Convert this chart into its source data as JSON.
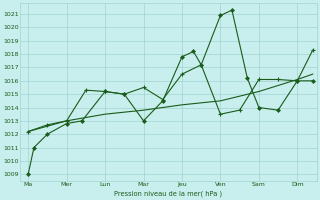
{
  "background_color": "#c8eeed",
  "grid_color": "#99cccc",
  "line_color": "#1a5c1a",
  "ylabel": "Pression niveau de la mer( hPa )",
  "ylim": [
    1008.5,
    1021.8
  ],
  "yticks": [
    1009,
    1010,
    1011,
    1012,
    1013,
    1014,
    1015,
    1016,
    1017,
    1018,
    1019,
    1020,
    1021
  ],
  "xtick_labels": [
    "Ma",
    "Mer",
    "Lun",
    "Mar",
    "Jeu",
    "Ven",
    "Sam",
    "Dim"
  ],
  "xtick_positions": [
    0,
    1,
    2,
    3,
    4,
    5,
    6,
    7
  ],
  "xlim": [
    -0.2,
    7.5
  ],
  "line1_x": [
    0,
    0.15,
    0.5,
    1.0,
    1.4,
    2.0,
    2.5,
    3.0,
    3.5,
    4.0,
    4.3,
    4.5,
    5.0,
    5.3,
    5.7,
    6.0,
    6.5,
    7.0,
    7.4
  ],
  "line1_y": [
    1009,
    1011,
    1012,
    1012.8,
    1013,
    1015.2,
    1015.0,
    1013.0,
    1014.5,
    1017.8,
    1018.2,
    1017.2,
    1020.9,
    1021.3,
    1016.2,
    1014.0,
    1013.8,
    1016.0,
    1016.0
  ],
  "line2_x": [
    0,
    1,
    2,
    3,
    4,
    5,
    6,
    7,
    7.4
  ],
  "line2_y": [
    1012.2,
    1013.0,
    1013.5,
    1013.8,
    1014.2,
    1014.5,
    1015.2,
    1016.1,
    1016.5
  ],
  "line3_x": [
    0,
    0.5,
    1.0,
    1.5,
    2.0,
    2.5,
    3.0,
    3.5,
    4.0,
    4.5,
    5.0,
    5.5,
    6.0,
    6.5,
    7.0,
    7.4
  ],
  "line3_y": [
    1012.2,
    1012.7,
    1013.0,
    1015.3,
    1015.2,
    1015.0,
    1015.5,
    1014.6,
    1016.5,
    1017.2,
    1013.5,
    1013.8,
    1016.1,
    1016.1,
    1016.0,
    1018.3
  ],
  "figsize": [
    3.2,
    2.0
  ],
  "dpi": 100
}
